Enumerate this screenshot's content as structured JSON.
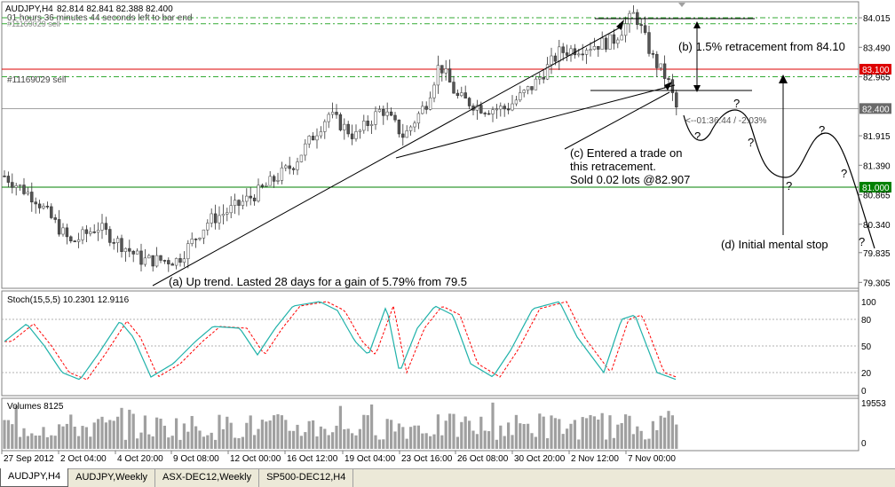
{
  "chart_header": {
    "symbol": "AUDJPY,H4",
    "ohlc": "82.814 82.841 82.388 82.400",
    "countdown": "01 hours 36 minutes 44 seconds left to bar end",
    "order_label_top": "#11169029 sell",
    "order_label_mid": "#11169029 sell"
  },
  "price_axis": {
    "ticks": [
      "84.015",
      "83.490",
      "82.965",
      "81.915",
      "81.390",
      "80.865",
      "80.340",
      "79.835",
      "79.305"
    ],
    "tick_values": [
      84.015,
      83.49,
      82.965,
      81.915,
      81.39,
      80.865,
      80.34,
      79.835,
      79.305
    ],
    "price_range": [
      79.2,
      84.3
    ],
    "badges": [
      {
        "label": "83.100",
        "value": 83.1,
        "color": "#dd0000"
      },
      {
        "label": "82.400",
        "value": 82.4,
        "color": "#6a6a6a"
      },
      {
        "label": "81.000",
        "value": 81.0,
        "color": "#008000"
      }
    ]
  },
  "annotations": {
    "a": "(a) Up trend. Lasted 28 days for a gain of 5.79% from 79.5",
    "b": "(b) 1.5% retracement from 84.10",
    "c1": "(c) Entered a trade on",
    "c2": "this retracement.",
    "c3": "Sold 0.02 lots @82.907",
    "d": "(d) Initial mental stop",
    "timer": "<--01:36:44 / -2.03%",
    "q": "?"
  },
  "stoch": {
    "label": "Stoch(15,5,5) 10.2301 12.9116",
    "ticks": [
      "100",
      "80",
      "50",
      "20",
      "0"
    ],
    "tick_values": [
      100,
      80,
      50,
      20,
      0
    ]
  },
  "volumes": {
    "label": "Volumes 8125",
    "ticks": [
      "19553",
      "0"
    ],
    "max": 19553
  },
  "time_axis": [
    "27 Sep 2012",
    "2 Oct 04:00",
    "4 Oct 20:00",
    "9 Oct 08:00",
    "12 Oct 00:00",
    "16 Oct 12:00",
    "19 Oct 04:00",
    "23 Oct 16:00",
    "26 Oct 08:00",
    "30 Oct 20:00",
    "2 Nov 12:00",
    "7 Nov 00:00"
  ],
  "tabs": [
    {
      "label": "AUDJPY,H4",
      "active": true
    },
    {
      "label": "AUDJPY,Weekly",
      "active": false
    },
    {
      "label": "ASX-DEC12,Weekly",
      "active": false
    },
    {
      "label": "SP500-DEC12,H4",
      "active": false
    }
  ],
  "colors": {
    "bull": "#008000",
    "bear": "#555555",
    "stoch_main": "#20b2aa",
    "stoch_signal": "#ff0000",
    "volume": "#a0a0a0",
    "order_line": "#dd0000",
    "target_line": "#008000"
  }
}
